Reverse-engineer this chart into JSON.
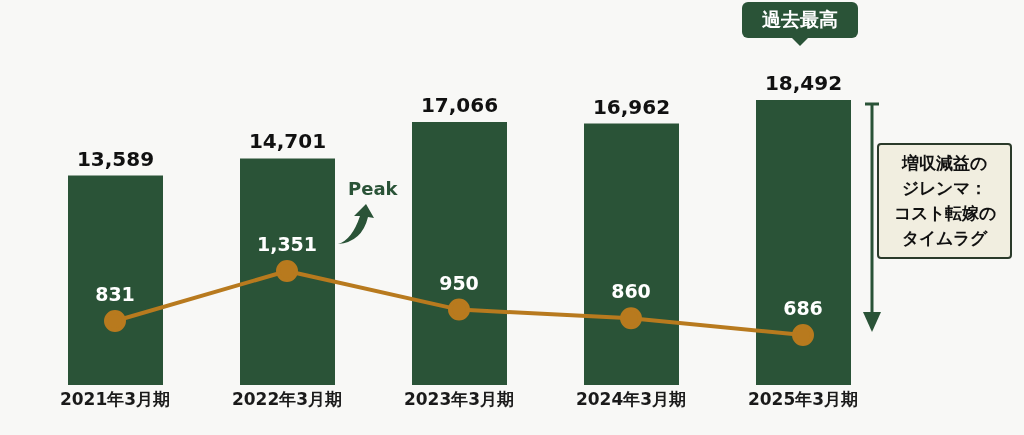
{
  "chart_data": {
    "type": "bar",
    "categories": [
      "2021年3月期",
      "2022年3月期",
      "2023年3月期",
      "2024年3月期",
      "2025年3月期"
    ],
    "series": [
      {
        "color": "#2a5337",
        "values": [
          13589,
          14701,
          17066,
          16962,
          18492
        ],
        "value_labels": [
          "13,589",
          "14,701",
          "17,066",
          "16,962",
          "18,492"
        ]
      },
      {
        "type": "line",
        "axis": "y2",
        "color": "#b87a1e",
        "values": [
          831,
          1351,
          950,
          860,
          686
        ],
        "value_labels": [
          "831",
          "1,351",
          "950",
          "860",
          "686"
        ]
      }
    ],
    "marker": "circle",
    "legend": false,
    "grid": false,
    "annotations": [
      "過去最高",
      "Peak",
      "増収減益のジレンマ：コスト転嫁のタイムラグ"
    ]
  }
}
